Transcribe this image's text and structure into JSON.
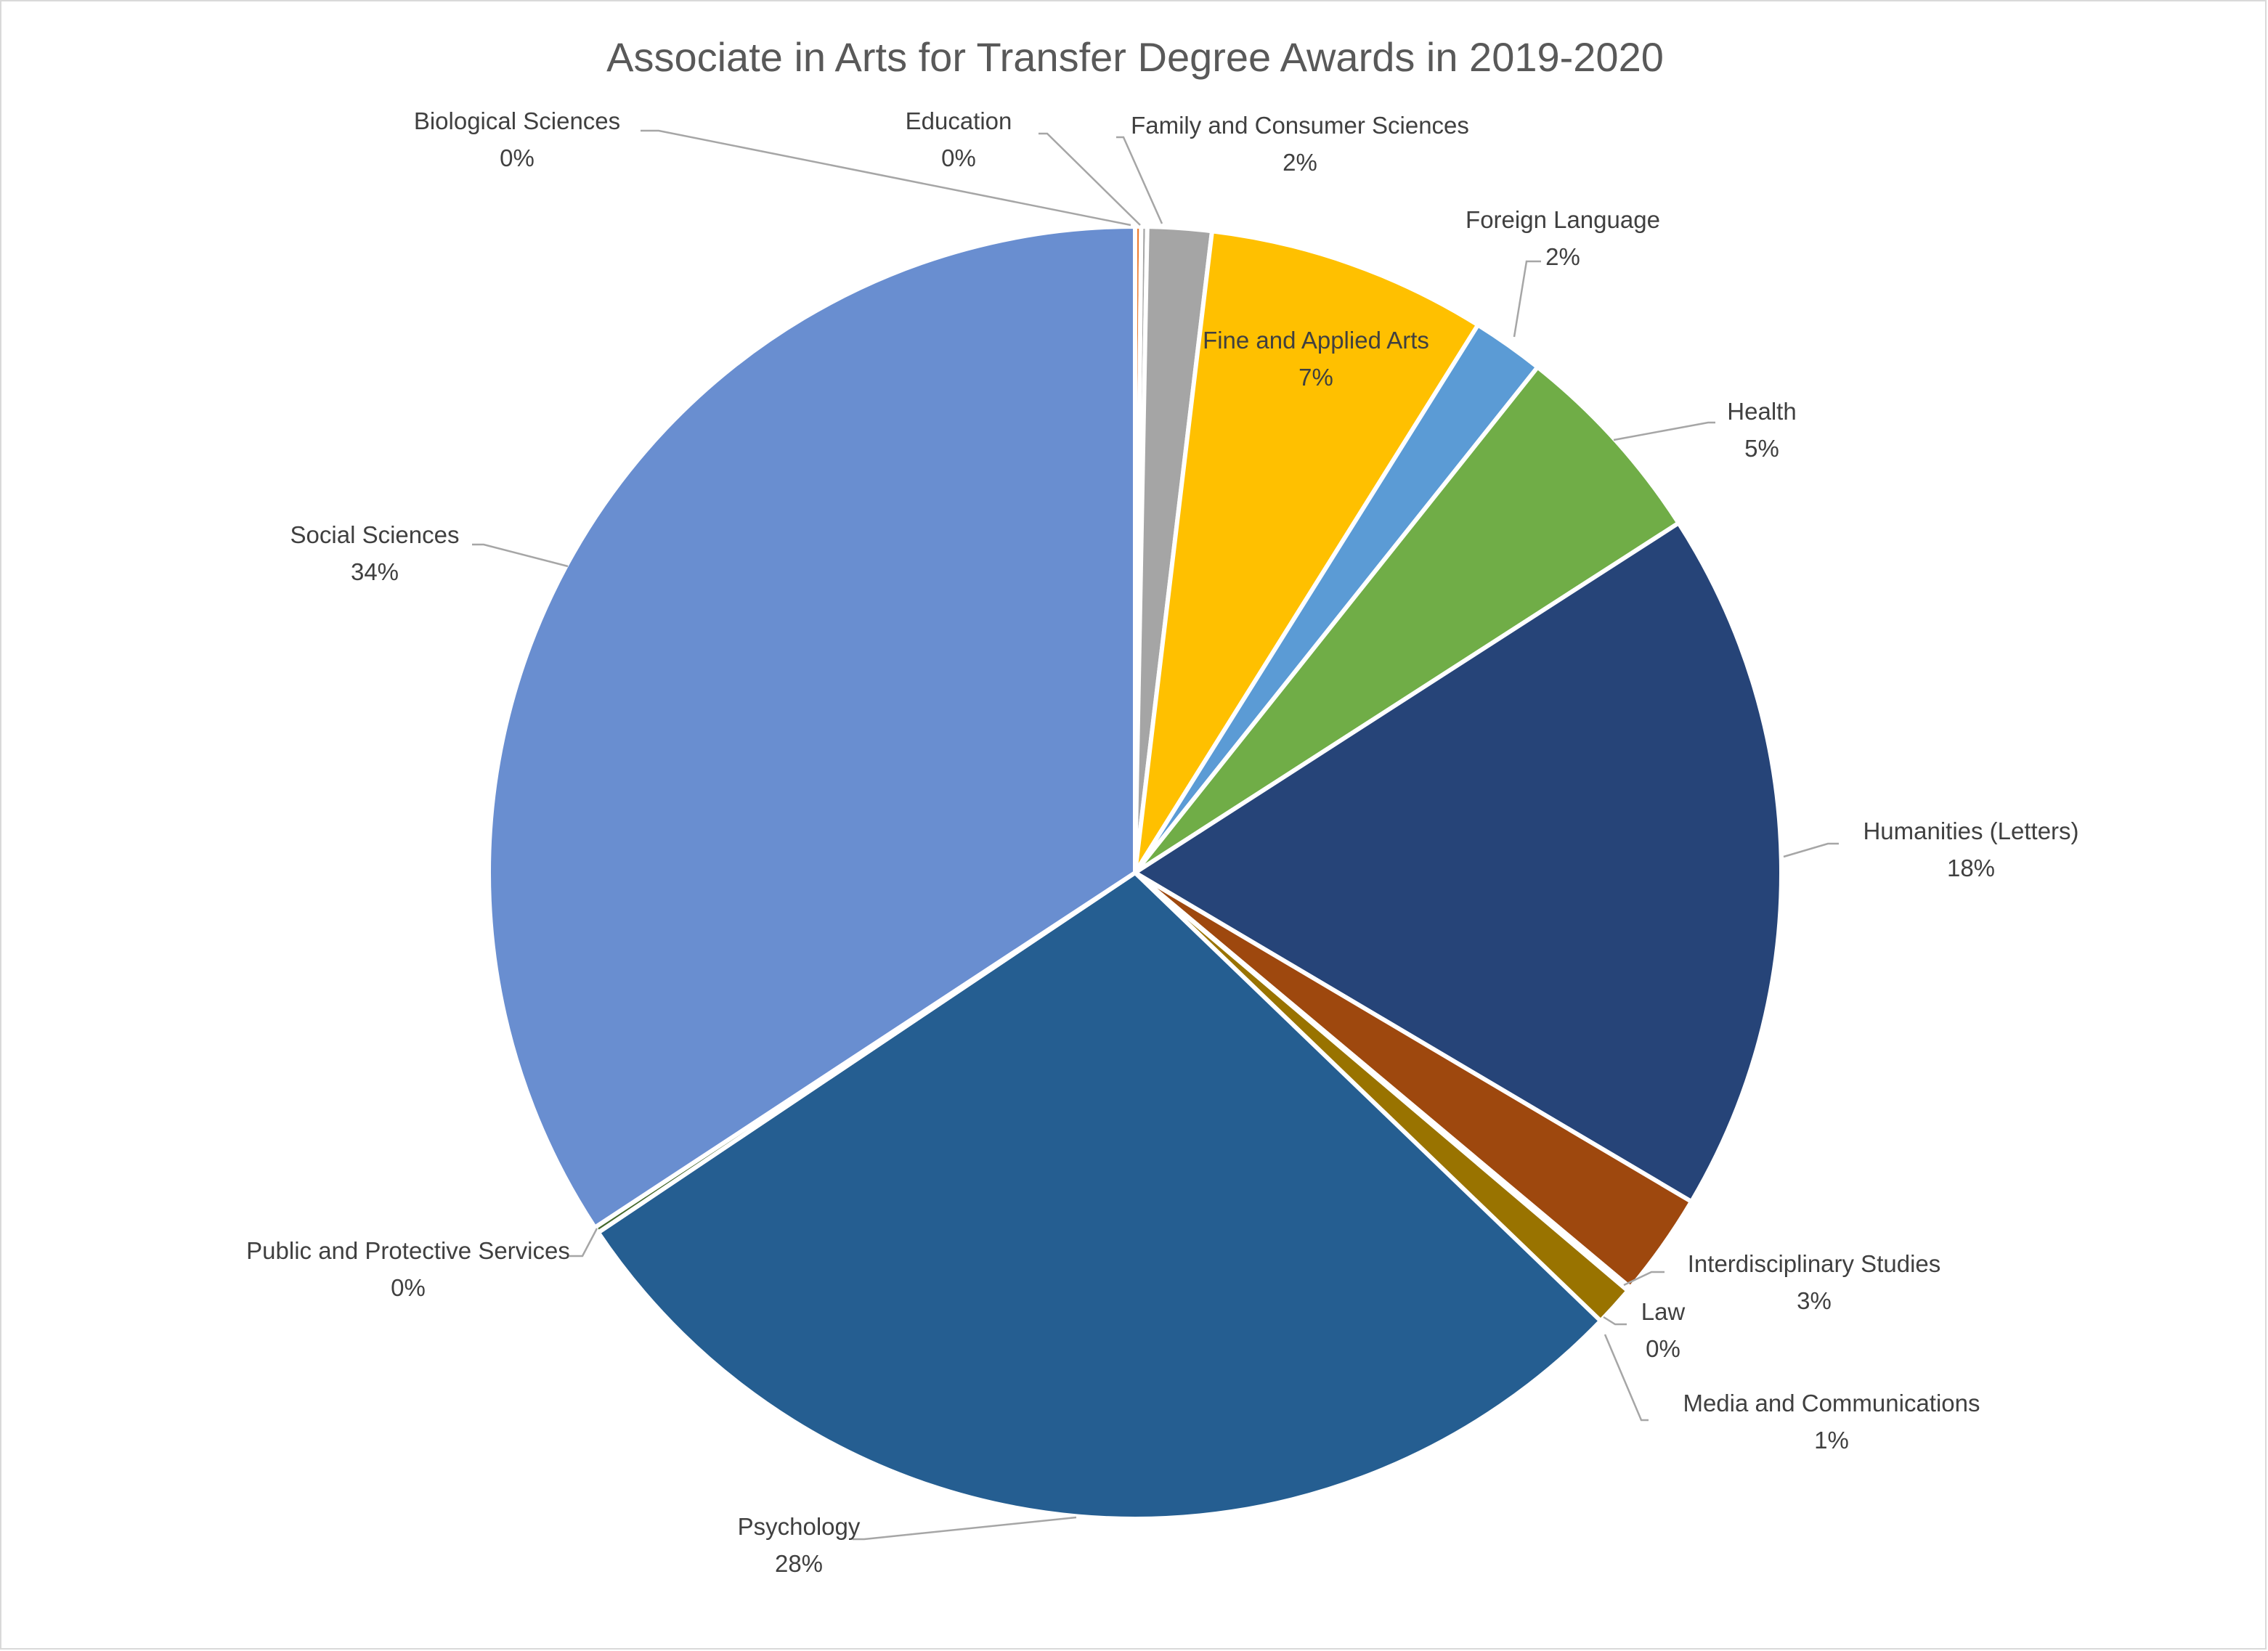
{
  "chart_data": {
    "type": "pie",
    "title": "Associate in Arts for Transfer Degree Awards in 2019-2020",
    "start_angle_deg": 0,
    "direction": "clockwise",
    "slices": [
      {
        "label": "Biological Sciences",
        "percent_label": "0%",
        "value": 0.15,
        "color": "#ED7D31"
      },
      {
        "label": "Education",
        "percent_label": "0%",
        "value": 0.15,
        "color": "#A5A5A5"
      },
      {
        "label": "Family and Consumer Sciences",
        "percent_label": "2%",
        "value": 1.6,
        "color": "#A5A5A5"
      },
      {
        "label": "Fine and Applied Arts",
        "percent_label": "7%",
        "value": 7.0,
        "color": "#FFC000"
      },
      {
        "label": "Foreign Language",
        "percent_label": "2%",
        "value": 1.8,
        "color": "#5B9BD5"
      },
      {
        "label": "Health",
        "percent_label": "5%",
        "value": 5.2,
        "color": "#70AD47"
      },
      {
        "label": "Humanities (Letters)",
        "percent_label": "18%",
        "value": 17.6,
        "color": "#264478"
      },
      {
        "label": "Interdisciplinary Studies",
        "percent_label": "3%",
        "value": 2.6,
        "color": "#9E480E"
      },
      {
        "label": "Law",
        "percent_label": "0%",
        "value": 0.1,
        "color": "#636363"
      },
      {
        "label": "Media and Communications",
        "percent_label": "1%",
        "value": 1.0,
        "color": "#997300"
      },
      {
        "label": "Psychology",
        "percent_label": "28%",
        "value": 28.4,
        "color": "#255E91"
      },
      {
        "label": "Public and Protective Services",
        "percent_label": "0%",
        "value": 0.15,
        "color": "#43682B"
      },
      {
        "label": "Social Sciences",
        "percent_label": "34%",
        "value": 34.25,
        "color": "#698ED0"
      }
    ]
  }
}
